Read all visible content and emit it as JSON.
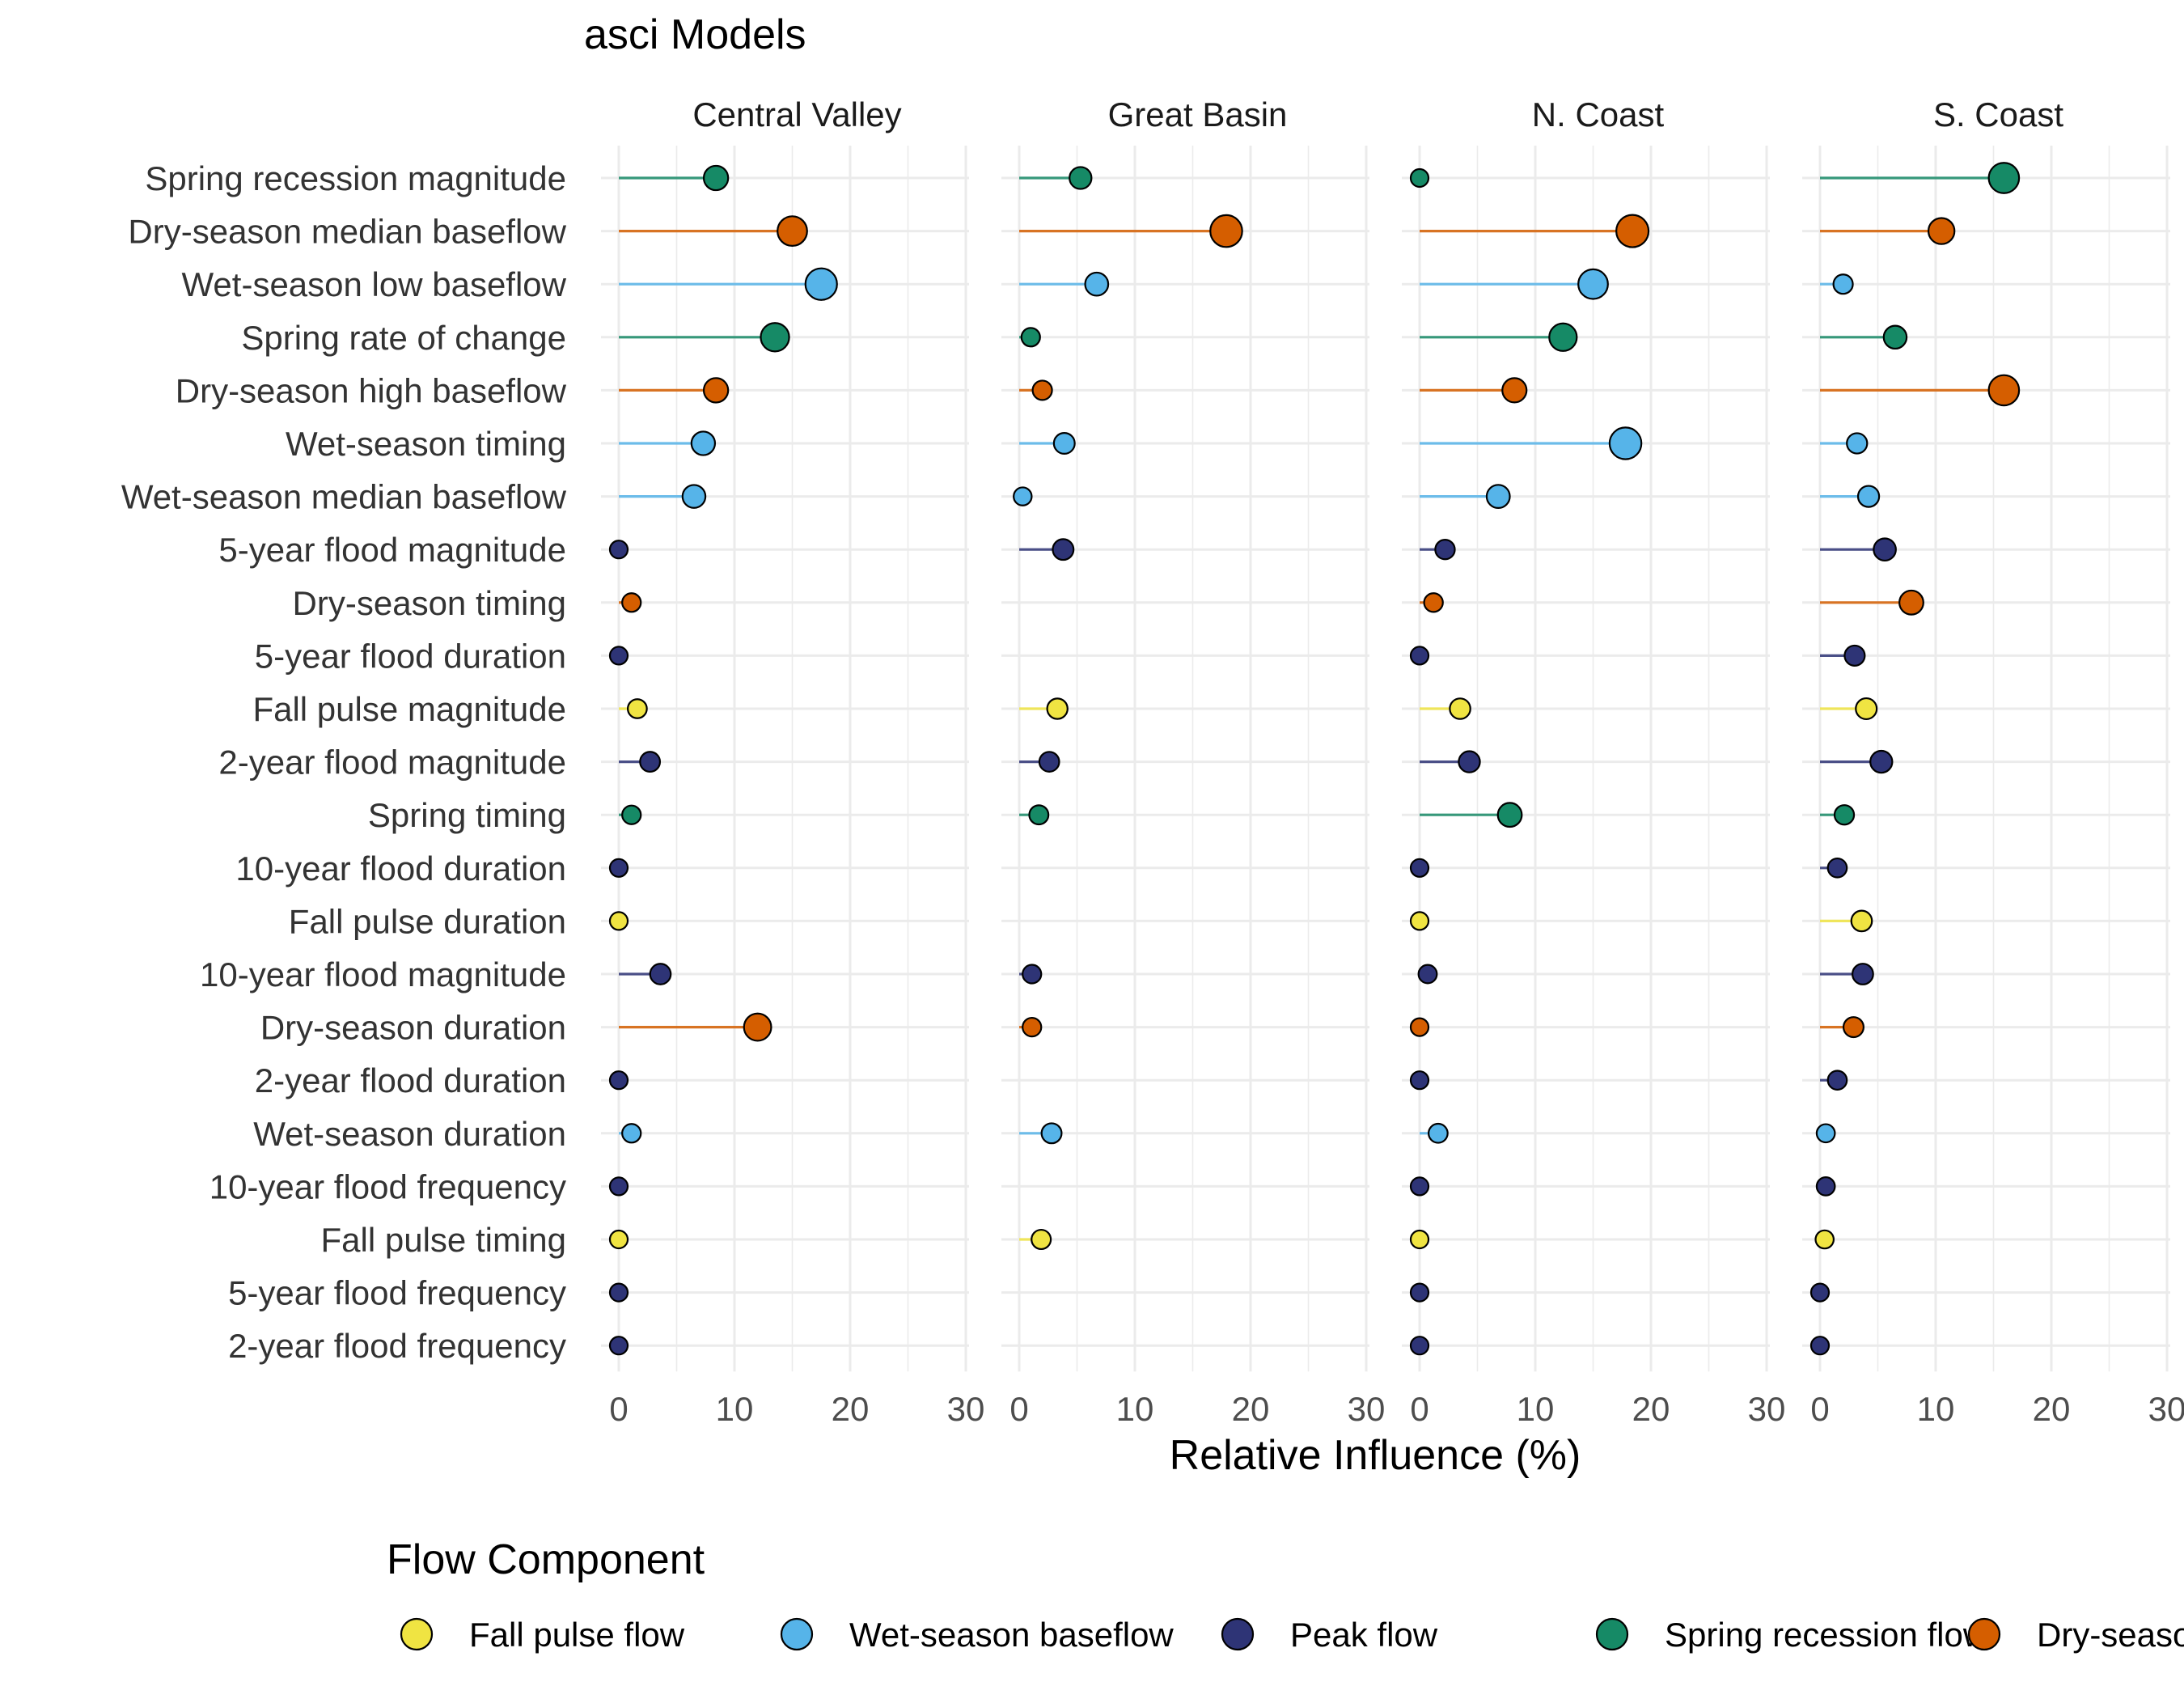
{
  "chart_data": {
    "type": "lollipop",
    "title": "asci Models",
    "xlabel": "Relative Influence (%)",
    "xlim": [
      0,
      30
    ],
    "x_ticks": [
      0,
      10,
      20,
      30
    ],
    "grid": true,
    "legend": {
      "title": "Flow Component",
      "position": "bottom",
      "items": [
        {
          "key": "fall",
          "label": "Fall pulse flow",
          "color": "#F0E442"
        },
        {
          "key": "wet",
          "label": "Wet-season baseflow",
          "color": "#56B4E9"
        },
        {
          "key": "peak",
          "label": "Peak flow",
          "color": "#2E3476"
        },
        {
          "key": "spring",
          "label": "Spring recession flow",
          "color": "#168A66"
        },
        {
          "key": "dry",
          "label": "Dry-season baseflow",
          "color": "#D55E00"
        }
      ]
    },
    "metrics": [
      {
        "label": "Spring recession magnitude",
        "group": "spring"
      },
      {
        "label": "Dry-season median baseflow",
        "group": "dry"
      },
      {
        "label": "Wet-season low baseflow",
        "group": "wet"
      },
      {
        "label": "Spring rate of change",
        "group": "spring"
      },
      {
        "label": "Dry-season high baseflow",
        "group": "dry"
      },
      {
        "label": "Wet-season timing",
        "group": "wet"
      },
      {
        "label": "Wet-season median baseflow",
        "group": "wet"
      },
      {
        "label": "5-year flood magnitude",
        "group": "peak"
      },
      {
        "label": "Dry-season timing",
        "group": "dry"
      },
      {
        "label": "5-year flood duration",
        "group": "peak"
      },
      {
        "label": "Fall pulse magnitude",
        "group": "fall"
      },
      {
        "label": "2-year flood magnitude",
        "group": "peak"
      },
      {
        "label": "Spring timing",
        "group": "spring"
      },
      {
        "label": "10-year flood duration",
        "group": "peak"
      },
      {
        "label": "Fall pulse duration",
        "group": "fall"
      },
      {
        "label": "10-year flood magnitude",
        "group": "peak"
      },
      {
        "label": "Dry-season duration",
        "group": "dry"
      },
      {
        "label": "2-year flood duration",
        "group": "peak"
      },
      {
        "label": "Wet-season duration",
        "group": "wet"
      },
      {
        "label": "10-year flood frequency",
        "group": "peak"
      },
      {
        "label": "Fall pulse timing",
        "group": "fall"
      },
      {
        "label": "5-year flood frequency",
        "group": "peak"
      },
      {
        "label": "2-year flood frequency",
        "group": "peak"
      }
    ],
    "panels": [
      {
        "name": "Central Valley",
        "values": [
          8.4,
          15.0,
          17.5,
          13.5,
          8.4,
          7.3,
          6.5,
          0.0,
          1.1,
          0.0,
          1.6,
          2.7,
          1.1,
          0.0,
          0.0,
          3.6,
          12.0,
          0.0,
          1.1,
          0.0,
          0.0,
          0.0,
          0.0
        ]
      },
      {
        "name": "Great Basin",
        "values": [
          5.3,
          17.9,
          6.7,
          1.0,
          2.0,
          3.9,
          0.3,
          3.8,
          null,
          null,
          3.3,
          2.6,
          1.7,
          null,
          null,
          1.1,
          1.1,
          null,
          2.8,
          null,
          1.9,
          null,
          null
        ]
      },
      {
        "name": "N. Coast",
        "values": [
          0.0,
          18.4,
          15.0,
          12.4,
          8.2,
          17.8,
          6.8,
          2.2,
          1.2,
          0.0,
          3.5,
          4.3,
          7.8,
          0.0,
          0.0,
          0.7,
          0.0,
          0.0,
          1.6,
          0.0,
          0.0,
          0.0,
          0.0
        ]
      },
      {
        "name": "S. Coast",
        "values": [
          15.9,
          10.5,
          2.0,
          6.5,
          15.9,
          3.2,
          4.2,
          5.6,
          7.9,
          3.0,
          4.0,
          5.3,
          2.1,
          1.5,
          3.6,
          3.7,
          2.9,
          1.5,
          0.5,
          0.5,
          0.4,
          0.0,
          0.0
        ]
      }
    ]
  }
}
